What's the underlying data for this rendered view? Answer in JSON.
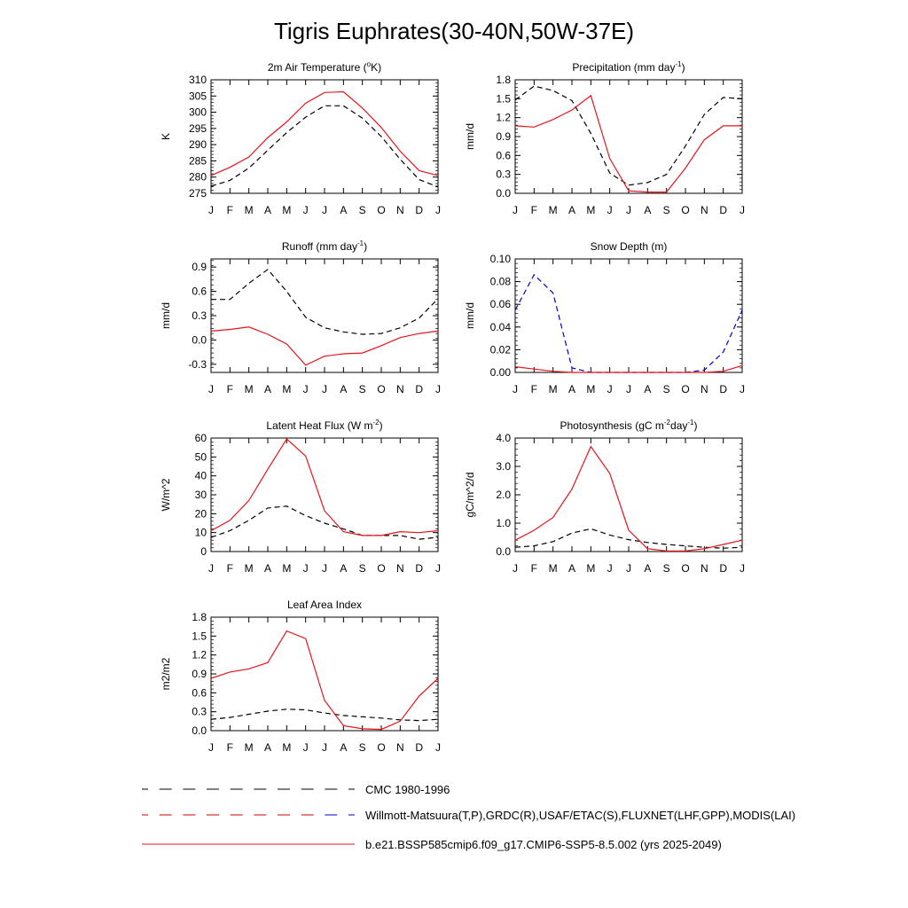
{
  "figure": {
    "title": "Tigris Euphrates(30-40N,50W-37E)"
  },
  "legend": {
    "items": [
      {
        "label": "CMC 1980-1996",
        "style": "dashed",
        "colors": [
          "#000000"
        ]
      },
      {
        "label": "Willmott-Matsuura(T,P),GRDC(R),USAF/ETAC(S),FLUXNET(LHF,GPP),MODIS(LAI)",
        "style": "dashed",
        "colors": [
          "#cc0000",
          "#0000cc"
        ]
      },
      {
        "label": "b.e21.BSSP585cmip6.f09_g17.CMIP6-SSP5-8.5.002 (yrs 2025-2049)",
        "style": "solid",
        "colors": [
          "#e8141b"
        ]
      }
    ]
  },
  "chart_data": [
    {
      "id": "temp",
      "type": "line",
      "title": "2m Air Temperature (",
      "title_sup": "o",
      "title_tail": "K)",
      "ylabel": "K",
      "ylim": [
        275,
        310
      ],
      "yticks": [
        275,
        280,
        285,
        290,
        295,
        300,
        305,
        310
      ],
      "ytick_labels": [
        "275",
        "280",
        "285",
        "290",
        "295",
        "300",
        "305",
        "310"
      ],
      "categories": [
        "J",
        "F",
        "M",
        "A",
        "M",
        "J",
        "J",
        "A",
        "S",
        "O",
        "N",
        "D",
        "J"
      ],
      "series": [
        {
          "color": "#000000",
          "style": "dashed",
          "values": [
            277.2,
            279,
            282.8,
            288.3,
            293.7,
            298.5,
            302,
            302,
            298.2,
            292.5,
            285.5,
            279.2,
            277
          ]
        },
        {
          "color": "#e8141b",
          "style": "solid",
          "values": [
            280.5,
            283,
            286.2,
            292.2,
            297,
            302.8,
            306.1,
            306.3,
            301.3,
            295.3,
            288,
            282,
            280.5
          ]
        }
      ]
    },
    {
      "id": "precip",
      "type": "line",
      "title": "Precipitation (mm day",
      "title_sup": "-1",
      "title_tail": ")",
      "ylabel": "mm/d",
      "ylim": [
        0,
        1.8
      ],
      "yticks": [
        0,
        0.3,
        0.6,
        0.9,
        1.2,
        1.5,
        1.8
      ],
      "ytick_labels": [
        "0.0",
        "0.3",
        "0.6",
        "0.9",
        "1.2",
        "1.5",
        "1.8"
      ],
      "categories": [
        "J",
        "F",
        "M",
        "A",
        "M",
        "J",
        "J",
        "A",
        "S",
        "O",
        "N",
        "D",
        "J"
      ],
      "series": [
        {
          "color": "#000000",
          "style": "dashed",
          "values": [
            1.48,
            1.7,
            1.63,
            1.47,
            0.95,
            0.32,
            0.13,
            0.17,
            0.3,
            0.75,
            1.25,
            1.52,
            1.5
          ]
        },
        {
          "color": "#e8141b",
          "style": "solid",
          "values": [
            1.07,
            1.05,
            1.17,
            1.32,
            1.55,
            0.55,
            0.04,
            0.02,
            0.02,
            0.4,
            0.85,
            1.07,
            1.07
          ]
        }
      ]
    },
    {
      "id": "runoff",
      "type": "line",
      "title": "Runoff (mm day",
      "title_sup": "-1",
      "title_tail": ")",
      "ylabel": "mm/d",
      "ylim": [
        -0.4,
        1.0
      ],
      "yticks": [
        -0.3,
        0,
        0.3,
        0.6,
        0.9
      ],
      "ytick_labels": [
        "-0.3",
        "0.0",
        "0.3",
        "0.6",
        "0.9"
      ],
      "categories": [
        "J",
        "F",
        "M",
        "A",
        "M",
        "J",
        "J",
        "A",
        "S",
        "O",
        "N",
        "D",
        "J"
      ],
      "series": [
        {
          "color": "#000000",
          "style": "dashed",
          "values": [
            0.5,
            0.5,
            0.7,
            0.87,
            0.6,
            0.28,
            0.15,
            0.1,
            0.07,
            0.08,
            0.15,
            0.27,
            0.51
          ]
        },
        {
          "color": "#e8141b",
          "style": "solid",
          "values": [
            0.11,
            0.13,
            0.16,
            0.07,
            -0.05,
            -0.31,
            -0.2,
            -0.17,
            -0.16,
            -0.07,
            0.03,
            0.08,
            0.11
          ]
        }
      ]
    },
    {
      "id": "snow",
      "type": "line",
      "title": "Snow Depth (m)",
      "title_sup": "",
      "title_tail": "",
      "ylabel": "mm/d",
      "ylim": [
        0,
        0.1
      ],
      "yticks": [
        0,
        0.02,
        0.04,
        0.06,
        0.08,
        0.1
      ],
      "ytick_labels": [
        "0.00",
        "0.02",
        "0.04",
        "0.06",
        "0.08",
        "0.10"
      ],
      "categories": [
        "J",
        "F",
        "M",
        "A",
        "M",
        "J",
        "J",
        "A",
        "S",
        "O",
        "N",
        "D",
        "J"
      ],
      "series": [
        {
          "color": "#0000cc",
          "style": "dashed",
          "values": [
            0.055,
            0.086,
            0.07,
            0.004,
            0,
            0,
            0,
            0,
            0,
            0,
            0.002,
            0.018,
            0.055
          ]
        },
        {
          "color": "#e8141b",
          "style": "solid",
          "values": [
            0.005,
            0.003,
            0.001,
            0,
            0,
            0,
            0,
            0,
            0,
            0,
            0,
            0.001,
            0.006
          ]
        }
      ]
    },
    {
      "id": "lhf",
      "type": "line",
      "title": "Latent Heat Flux (W m",
      "title_sup": "-2",
      "title_tail": ")",
      "ylabel": "W/m^2",
      "ylim": [
        0,
        60
      ],
      "yticks": [
        0,
        10,
        20,
        30,
        40,
        50,
        60
      ],
      "ytick_labels": [
        "0",
        "10",
        "20",
        "30",
        "40",
        "50",
        "60"
      ],
      "categories": [
        "J",
        "F",
        "M",
        "A",
        "M",
        "J",
        "J",
        "A",
        "S",
        "O",
        "N",
        "D",
        "J"
      ],
      "series": [
        {
          "color": "#000000",
          "style": "dashed",
          "values": [
            7.5,
            11,
            16.5,
            23,
            24,
            19,
            15,
            12,
            8.5,
            8.5,
            8.5,
            6.5,
            7.5
          ]
        },
        {
          "color": "#e8141b",
          "style": "solid",
          "values": [
            11,
            16.5,
            27,
            43.5,
            59.5,
            50.5,
            21.5,
            10.5,
            8.5,
            8.5,
            10.5,
            10,
            11
          ]
        }
      ]
    },
    {
      "id": "gpp",
      "type": "line",
      "title": "Photosynthesis (gC m",
      "title_sup": "-2",
      "title_tail": "day",
      "title_sup2": "-1",
      "title_tail2": ")",
      "ylabel": "gC/m^2/d",
      "ylim": [
        0,
        4
      ],
      "yticks": [
        0,
        1,
        2,
        3,
        4
      ],
      "ytick_labels": [
        "0.0",
        "1.0",
        "2.0",
        "3.0",
        "4.0"
      ],
      "categories": [
        "J",
        "F",
        "M",
        "A",
        "M",
        "J",
        "J",
        "A",
        "S",
        "O",
        "N",
        "D",
        "J"
      ],
      "series": [
        {
          "color": "#000000",
          "style": "dashed",
          "values": [
            0.15,
            0.2,
            0.35,
            0.65,
            0.8,
            0.58,
            0.42,
            0.32,
            0.25,
            0.2,
            0.15,
            0.12,
            0.15
          ]
        },
        {
          "color": "#e8141b",
          "style": "solid",
          "values": [
            0.4,
            0.75,
            1.2,
            2.2,
            3.7,
            2.75,
            0.75,
            0.1,
            0.02,
            0.02,
            0.1,
            0.25,
            0.4
          ]
        }
      ]
    },
    {
      "id": "lai",
      "type": "line",
      "title": "Leaf Area Index",
      "title_sup": "",
      "title_tail": "",
      "ylabel": "m2/m2",
      "ylim": [
        0,
        1.8
      ],
      "yticks": [
        0,
        0.3,
        0.6,
        0.9,
        1.2,
        1.5,
        1.8
      ],
      "ytick_labels": [
        "0.0",
        "0.3",
        "0.6",
        "0.9",
        "1.2",
        "1.5",
        "1.8"
      ],
      "categories": [
        "J",
        "F",
        "M",
        "A",
        "M",
        "J",
        "J",
        "A",
        "S",
        "O",
        "N",
        "D",
        "J"
      ],
      "series": [
        {
          "color": "#000000",
          "style": "dashed",
          "values": [
            0.18,
            0.21,
            0.26,
            0.31,
            0.34,
            0.33,
            0.28,
            0.24,
            0.22,
            0.2,
            0.17,
            0.16,
            0.18
          ]
        },
        {
          "color": "#e8141b",
          "style": "solid",
          "values": [
            0.83,
            0.93,
            0.98,
            1.08,
            1.58,
            1.46,
            0.48,
            0.08,
            0.03,
            0.02,
            0.15,
            0.55,
            0.83
          ]
        }
      ]
    }
  ]
}
